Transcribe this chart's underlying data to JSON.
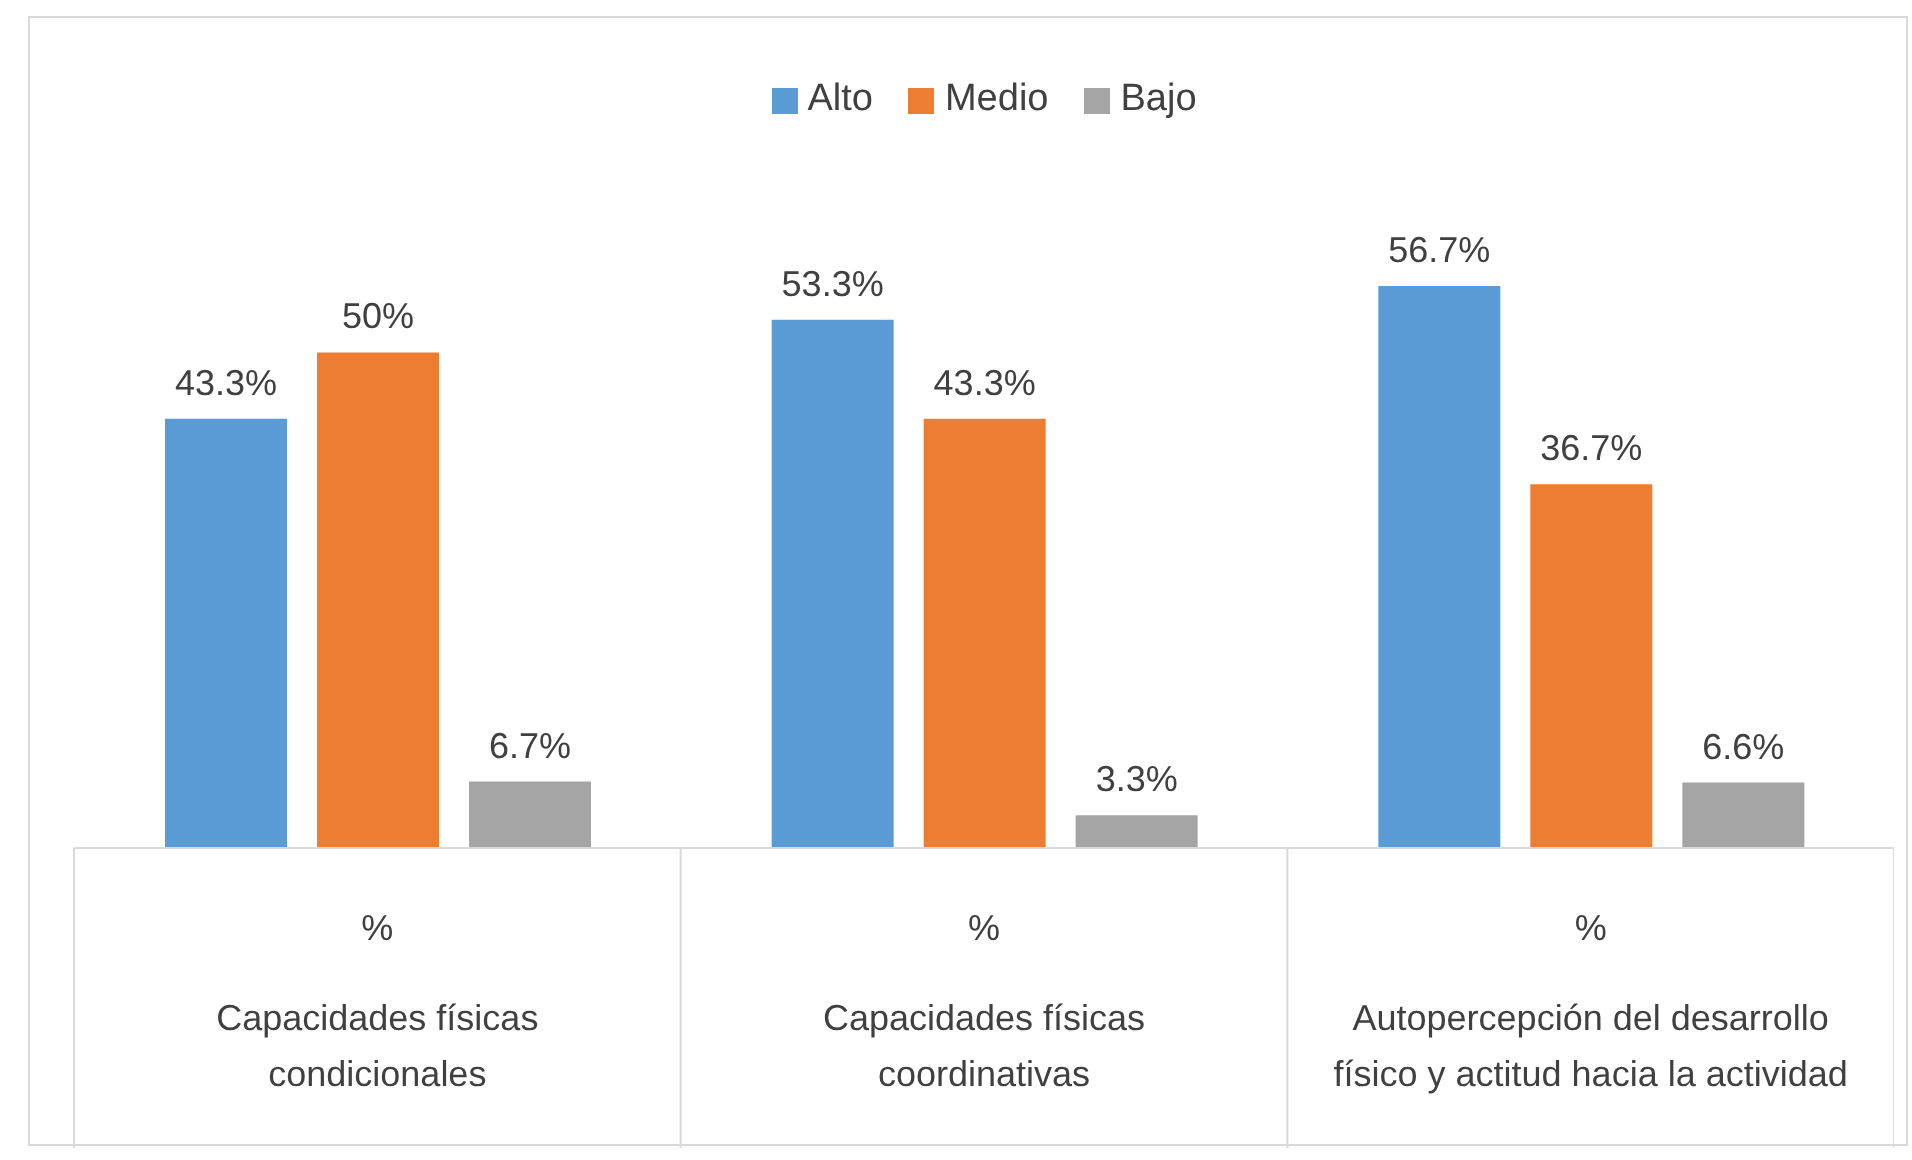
{
  "chart_data": {
    "type": "bar",
    "categories": [
      "%\nCapacidades físicas condicionales",
      "%\nCapacidades físicas coordinativas",
      "%\nAutopercepción del desarrollo físico y actitud hacia la actividad"
    ],
    "series": [
      {
        "name": "Alto",
        "color": "#5b9bd5",
        "values": [
          43.3,
          53.3,
          56.7
        ],
        "value_labels": [
          "43.3%",
          "53.3%",
          "56.7%"
        ]
      },
      {
        "name": "Medio",
        "color": "#ed7d31",
        "values": [
          50,
          43.3,
          36.7
        ],
        "value_labels": [
          "50%",
          "43.3%",
          "36.7%"
        ]
      },
      {
        "name": "Bajo",
        "color": "#a5a5a5",
        "values": [
          6.7,
          3.3,
          6.6
        ],
        "value_labels": [
          "6.7%",
          "3.3%",
          "6.6%"
        ]
      }
    ],
    "legend": "top"
  }
}
